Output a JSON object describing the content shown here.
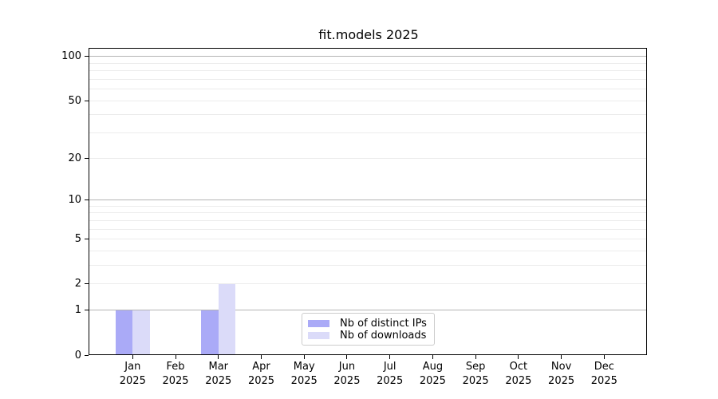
{
  "figure": {
    "title": "fit.models 2025"
  },
  "chart_data": {
    "type": "bar",
    "title": "fit.models 2025",
    "categories": [
      "Jan",
      "Feb",
      "Mar",
      "Apr",
      "May",
      "Jun",
      "Jul",
      "Aug",
      "Sep",
      "Oct",
      "Nov",
      "Dec"
    ],
    "category_year_label": "2025",
    "series": [
      {
        "name": "Nb of distinct IPs",
        "color": "#aaaaf7",
        "values": [
          1,
          0,
          1,
          0,
          0,
          0,
          0,
          0,
          0,
          0,
          0,
          0
        ]
      },
      {
        "name": "Nb of downloads",
        "color": "#dbdbf9",
        "values": [
          1,
          0,
          2,
          0,
          0,
          0,
          0,
          0,
          0,
          0,
          0,
          0
        ]
      }
    ],
    "xlabel": "",
    "ylabel": "",
    "yscale": "log10(1+x)",
    "ylim": [
      0,
      113
    ],
    "yticks": [
      0,
      1,
      2,
      5,
      10,
      20,
      50,
      100
    ],
    "major_gridlines": [
      1,
      10,
      100
    ],
    "minor_gridlines": [
      2,
      3,
      4,
      5,
      6,
      7,
      8,
      9,
      20,
      30,
      40,
      50,
      60,
      70,
      80,
      90
    ],
    "grid": "on",
    "legend_position": "lower center (inside axes)",
    "colors": {
      "background": "#ffffff",
      "spine": "#000000",
      "text": "#000000",
      "major_grid": "#b4b4b4",
      "minor_grid": "#ececec"
    }
  }
}
